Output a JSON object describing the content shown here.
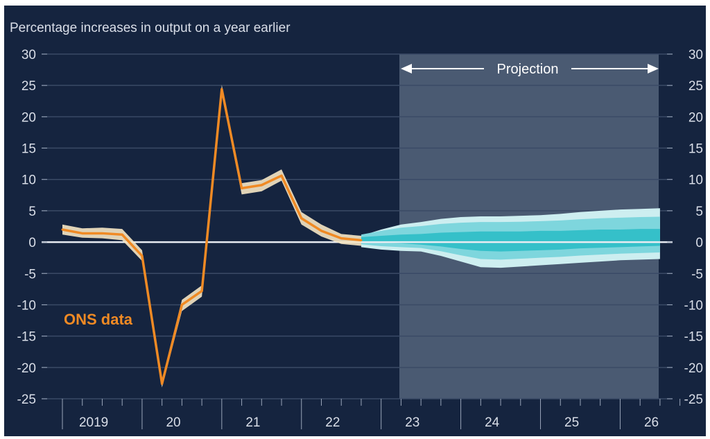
{
  "chart_data": {
    "type": "line",
    "subtitle": "Percentage increases in output on a year earlier",
    "ylim": [
      -25,
      30
    ],
    "yticks": [
      30,
      25,
      20,
      15,
      10,
      5,
      0,
      -5,
      -10,
      -15,
      -20,
      -25
    ],
    "x_labels": [
      "2019",
      "20",
      "21",
      "22",
      "23",
      "24",
      "25",
      "26"
    ],
    "projection_label": "Projection",
    "series": [
      {
        "name": "ONS data",
        "x": [
          "2019 Q1",
          "2019 Q2",
          "2019 Q3",
          "2019 Q4",
          "2020 Q1",
          "2020 Q2",
          "2020 Q3",
          "2020 Q4",
          "2021 Q1",
          "2021 Q2",
          "2021 Q3",
          "2021 Q4",
          "2022 Q1",
          "2022 Q2",
          "2022 Q3",
          "2022 Q4"
        ],
        "values": [
          2.0,
          1.4,
          1.4,
          1.2,
          -2.2,
          -22.6,
          -10.0,
          -7.8,
          24.4,
          8.6,
          9.1,
          10.6,
          3.8,
          1.8,
          0.6,
          0.3
        ]
      }
    ],
    "fan_chart": {
      "x": [
        "2022 Q4",
        "2023 Q1",
        "2023 Q2",
        "2023 Q3",
        "2023 Q4",
        "2024 Q1",
        "2024 Q2",
        "2024 Q3",
        "2024 Q4",
        "2025 Q1",
        "2025 Q2",
        "2025 Q3",
        "2025 Q4",
        "2026 Q1",
        "2026 Q2",
        "2026 Q3"
      ],
      "upper": [
        1.0,
        2.0,
        2.8,
        3.2,
        3.7,
        4.0,
        4.1,
        4.1,
        4.2,
        4.3,
        4.5,
        4.8,
        5.0,
        5.2,
        5.3,
        5.4
      ],
      "lower": [
        -0.8,
        -1.2,
        -1.4,
        -1.5,
        -2.2,
        -3.1,
        -4.0,
        -4.1,
        -3.9,
        -3.7,
        -3.5,
        -3.3,
        -3.1,
        -2.9,
        -2.8,
        -2.7
      ],
      "central_upper": [
        0.8,
        1.0,
        1.2,
        1.3,
        1.5,
        1.6,
        1.7,
        1.7,
        1.7,
        1.8,
        1.8,
        1.9,
        2.0,
        2.0,
        2.1,
        2.1
      ],
      "central_lower": [
        0.1,
        -0.1,
        -0.2,
        -0.4,
        -0.7,
        -1.1,
        -1.4,
        -1.5,
        -1.4,
        -1.3,
        -1.2,
        -1.0,
        -0.9,
        -0.8,
        -0.7,
        -0.6
      ]
    },
    "ons_band": {
      "upper": [
        2.8,
        2.2,
        2.3,
        2.1,
        -1.3,
        -22.0,
        -9.2,
        -6.9,
        25.1,
        9.4,
        9.9,
        11.6,
        4.8,
        2.8,
        1.3,
        1.0
      ],
      "lower": [
        1.2,
        0.7,
        0.6,
        0.3,
        -3.0,
        -23.2,
        -11.0,
        -8.7,
        23.6,
        7.6,
        8.1,
        9.8,
        2.8,
        0.9,
        -0.3,
        -0.6
      ]
    },
    "colors": {
      "background": "#15243f",
      "projection_shade": "#4a5a72",
      "ons_line": "#f08a24",
      "ons_band": "#f6e7c4",
      "fan_outer": "#cdeef0",
      "fan_middle": "#7ed6dd",
      "fan_inner": "#35c0c9",
      "gridline": "#3a4a66",
      "zero_line": "#e8ecf2"
    },
    "grid": true
  }
}
